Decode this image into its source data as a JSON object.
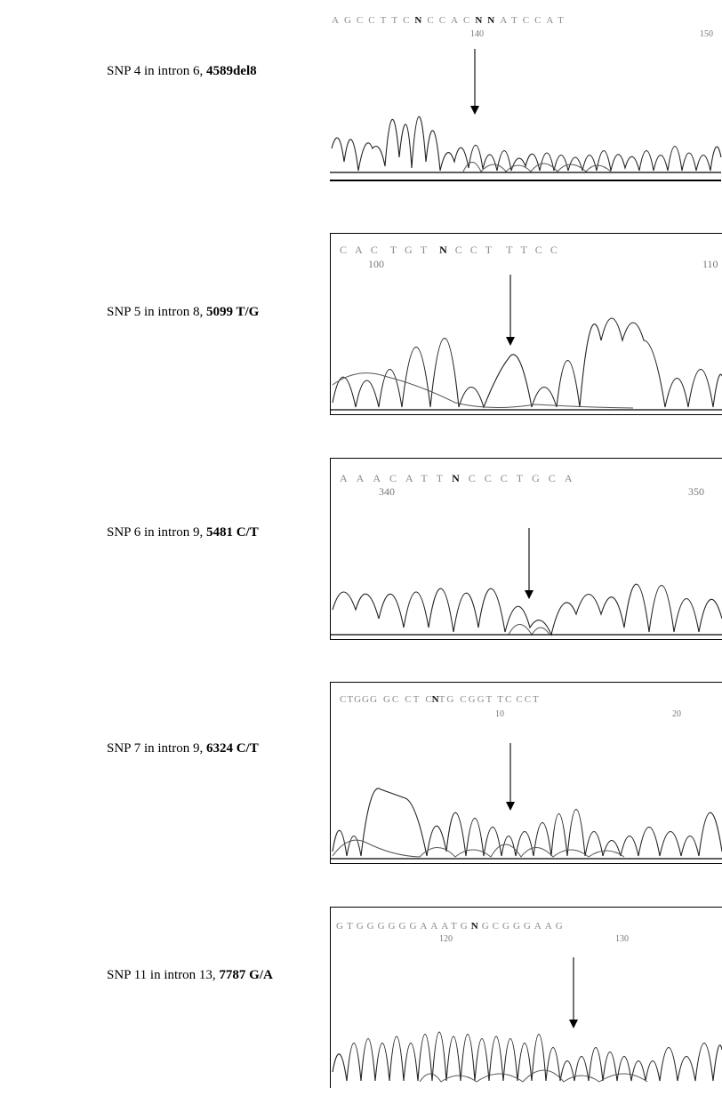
{
  "figure": {
    "rows": [
      {
        "label_prefix": "SNP 4 in intron 6, ",
        "label_bold": "4589del8",
        "sequence": [
          "A",
          "G",
          "C",
          "C",
          "T",
          "T",
          "C",
          "N",
          "C",
          "C",
          "A",
          "C",
          "N",
          "N",
          "A",
          "T",
          "C",
          "C",
          "A",
          "T"
        ],
        "positions": [
          "140",
          "150"
        ]
      },
      {
        "label_prefix": "SNP 5 in intron 8, ",
        "label_bold": "5099 T/G",
        "sequence": [
          "C",
          "A",
          "C",
          "T",
          "G",
          "T",
          "N",
          "C",
          "C",
          "T",
          "T",
          "T",
          "C",
          "C"
        ],
        "positions": [
          "100",
          "110"
        ]
      },
      {
        "label_prefix": "SNP 6 in intron 9, ",
        "label_bold": "5481 C/T",
        "sequence": [
          "A",
          "A",
          "A",
          "C",
          "A",
          "T",
          "T",
          "N",
          "C",
          "C",
          "C",
          "T",
          "G",
          "C",
          "A"
        ],
        "positions": [
          "340",
          "350"
        ]
      },
      {
        "label_prefix": "SNP 7 in intron 9, ",
        "label_bold": "6324 C/T",
        "sequence": [
          "C",
          "T",
          "G",
          "G",
          "G",
          "G",
          "C",
          "C",
          "T",
          "C",
          "N",
          "T",
          "G",
          "C",
          "G",
          "G",
          "T",
          "T",
          "C",
          "C",
          "C",
          "T"
        ],
        "positions": [
          "10",
          "20"
        ]
      },
      {
        "label_prefix": "SNP 11 in intron 13, ",
        "label_bold": "7787 G/A",
        "sequence": [
          "G",
          "T",
          "G",
          "G",
          "G",
          "G",
          "G",
          "G",
          "A",
          "A",
          "A",
          "T",
          "G",
          "N",
          "G",
          "C",
          "G",
          "G",
          "G",
          "A",
          "A",
          "G"
        ],
        "positions": [
          "120",
          "130"
        ]
      }
    ]
  }
}
